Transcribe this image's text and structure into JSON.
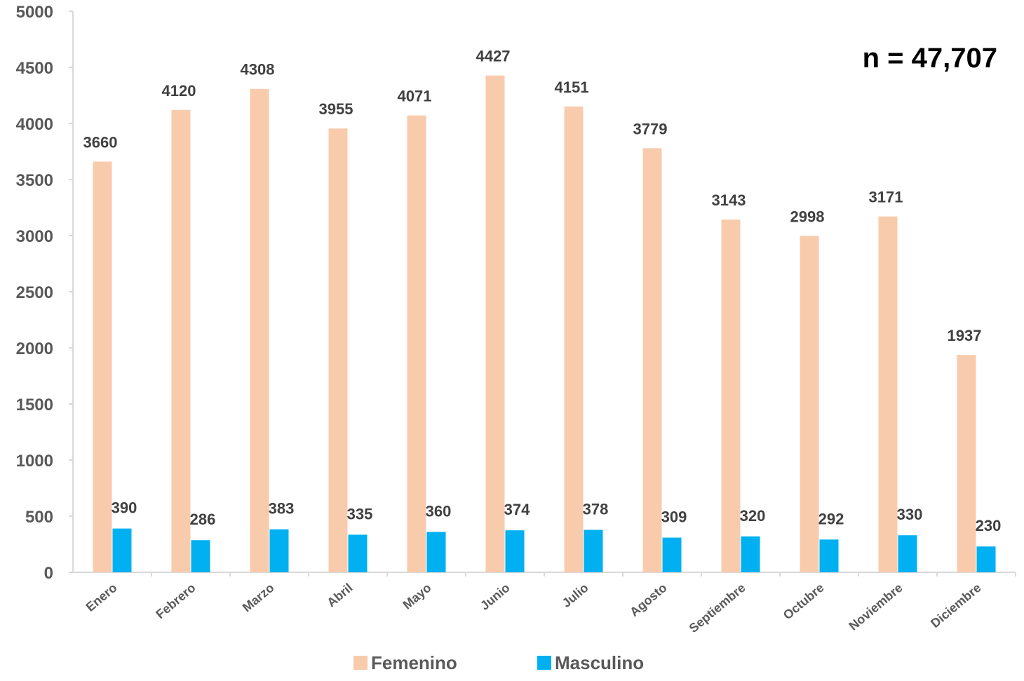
{
  "chart_data": {
    "type": "bar",
    "categories": [
      "Enero",
      "Febrero",
      "Marzo",
      "Abril",
      "Mayo",
      "Junio",
      "Julio",
      "Agosto",
      "Septiembre",
      "Octubre",
      "Noviembre",
      "Diciembre"
    ],
    "series": [
      {
        "name": "Femenino",
        "color": "#F8CBAD",
        "values": [
          3660,
          4120,
          4308,
          3955,
          4071,
          4427,
          4151,
          3779,
          3143,
          2998,
          3171,
          1937
        ]
      },
      {
        "name": "Masculino",
        "color": "#00B0F0",
        "values": [
          390,
          286,
          383,
          335,
          360,
          374,
          378,
          309,
          320,
          292,
          330,
          230
        ]
      }
    ],
    "ylim": [
      0,
      5000
    ],
    "yticks": [
      0,
      500,
      1000,
      1500,
      2000,
      2500,
      3000,
      3500,
      4000,
      4500,
      5000
    ],
    "annotation": "n = 47,707",
    "legend_position": "bottom",
    "grid": false
  }
}
